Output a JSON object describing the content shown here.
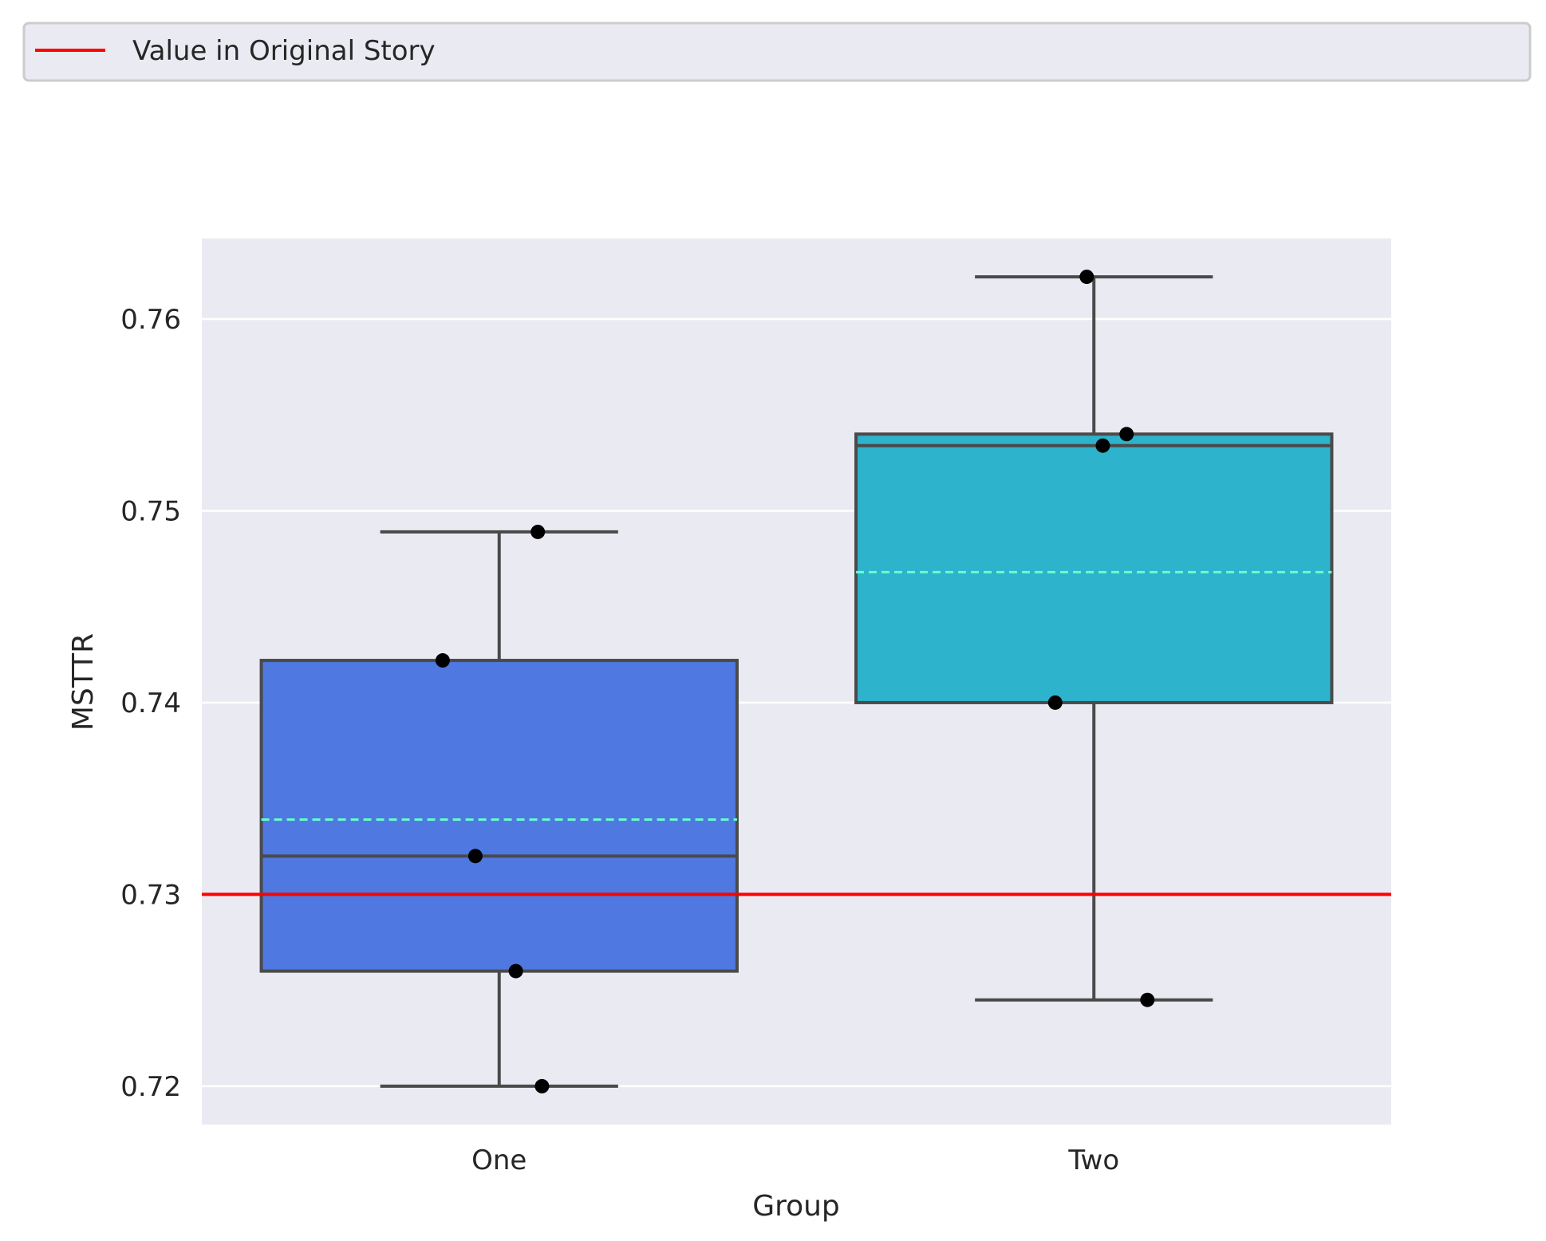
{
  "chart_data": {
    "type": "box",
    "title": "",
    "xlabel": "Group",
    "ylabel": "MSTTR",
    "ylim": [
      0.718,
      0.7642
    ],
    "yticks": [
      0.72,
      0.73,
      0.74,
      0.75,
      0.76
    ],
    "ytick_labels": [
      "0.72",
      "0.73",
      "0.74",
      "0.75",
      "0.76"
    ],
    "grid": true,
    "legend": {
      "placement": "top, full width above plot",
      "entries": [
        {
          "label": "Value in Original Story",
          "color": "#ff0000",
          "style": "line"
        }
      ]
    },
    "reference_line": {
      "value": 0.73,
      "color": "#ff0000",
      "label": "Value in Original Story"
    },
    "categories": [
      "One",
      "Two"
    ],
    "boxes": [
      {
        "name": "One",
        "color": "#4f78e0",
        "whisker_low": 0.72,
        "q1": 0.726,
        "median": 0.732,
        "q3": 0.7422,
        "whisker_high": 0.7489,
        "mean": 0.7339,
        "points": [
          0.7489,
          0.7422,
          0.732,
          0.726,
          0.72
        ],
        "jitter": [
          0.065,
          -0.095,
          -0.04,
          0.028,
          0.072
        ]
      },
      {
        "name": "Two",
        "color": "#2db3cb",
        "whisker_low": 0.7245,
        "q1": 0.74,
        "median": 0.7534,
        "q3": 0.754,
        "whisker_high": 0.7622,
        "mean": 0.7468,
        "points": [
          0.7622,
          0.754,
          0.7534,
          0.74,
          0.7245
        ],
        "jitter": [
          -0.012,
          0.055,
          0.015,
          -0.065,
          0.09
        ]
      }
    ],
    "mean_line_color": "#66ffcc",
    "box_edge_color": "#4a4a4a",
    "plot_background": "#eaeaf2",
    "grid_color": "#ffffff",
    "point_color": "#000000"
  }
}
